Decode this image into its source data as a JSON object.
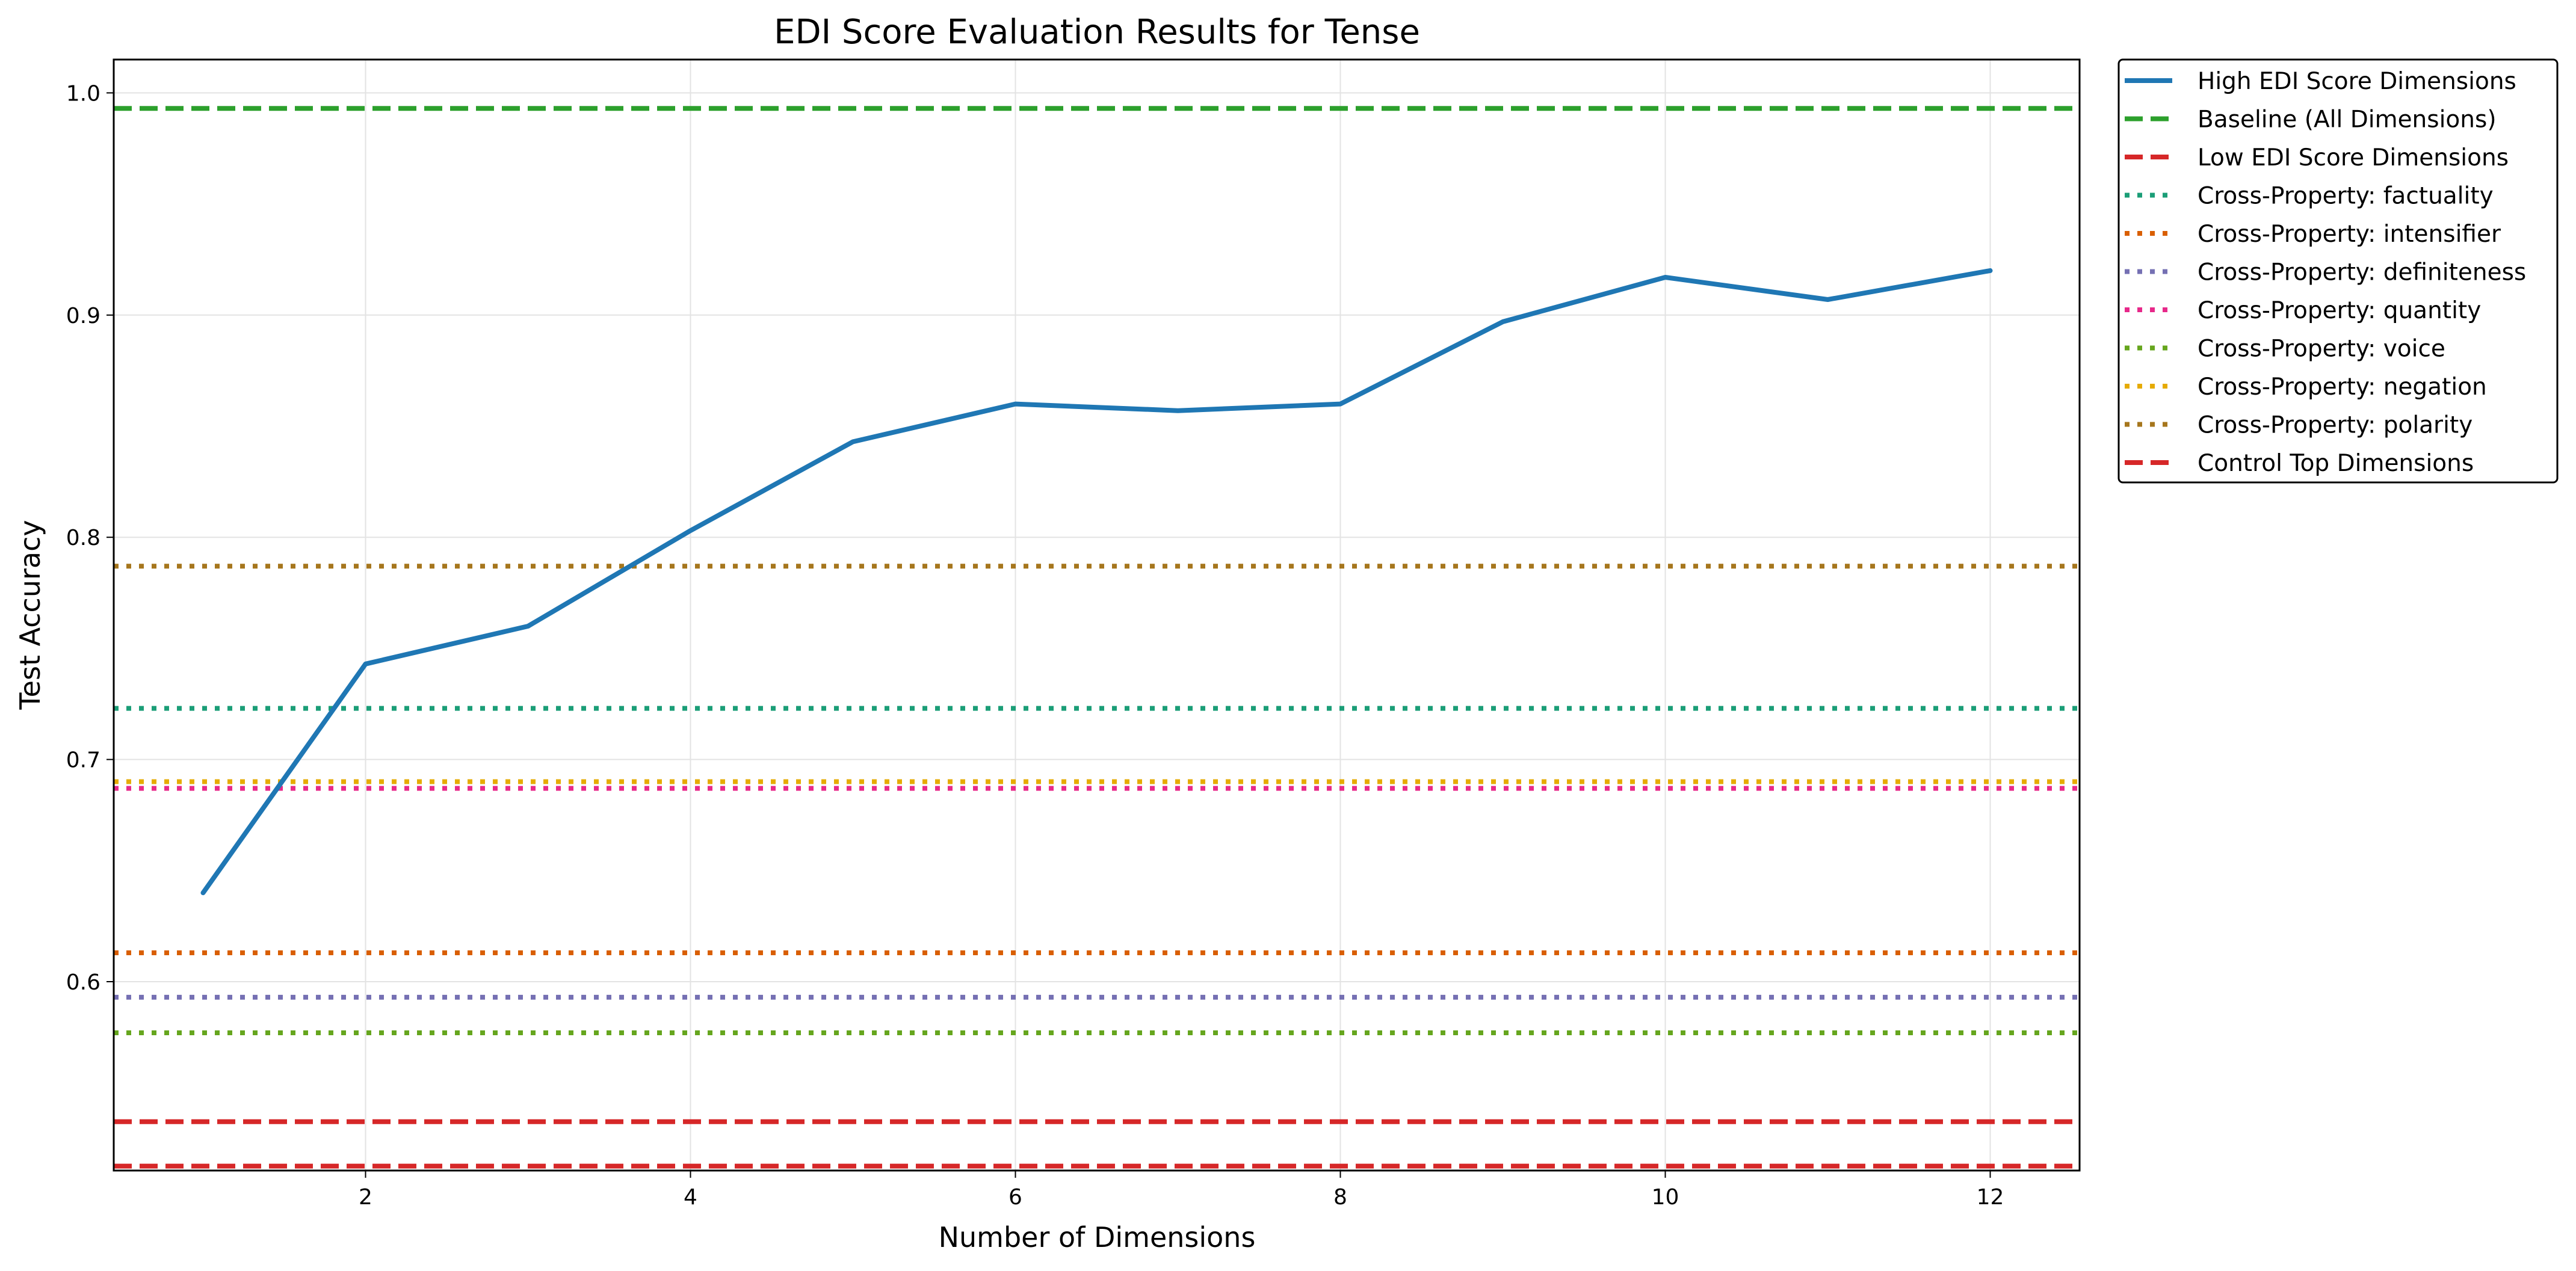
{
  "chart_data": {
    "type": "line",
    "title": "EDI Score Evaluation Results for Tense",
    "xlabel": "Number of Dimensions",
    "ylabel": "Test Accuracy",
    "xlim": [
      0.45,
      12.55
    ],
    "ylim": [
      0.515,
      1.015
    ],
    "xticks": [
      2,
      4,
      6,
      8,
      10,
      12
    ],
    "yticks": [
      0.6,
      0.7,
      0.8,
      0.9,
      1.0
    ],
    "ytick_labels": [
      "0.6",
      "0.7",
      "0.8",
      "0.9",
      "1.0"
    ],
    "grid": true,
    "legend_position": "outside-top-right",
    "series": [
      {
        "name": "High EDI Score Dimensions",
        "kind": "line",
        "style": "solid",
        "color": "#1f77b4",
        "x": [
          1,
          2,
          3,
          4,
          5,
          6,
          7,
          8,
          9,
          10,
          11,
          12
        ],
        "y": [
          0.64,
          0.743,
          0.76,
          0.803,
          0.843,
          0.86,
          0.857,
          0.86,
          0.897,
          0.917,
          0.907,
          0.92
        ]
      },
      {
        "name": "Baseline (All Dimensions)",
        "kind": "hline",
        "style": "dashed",
        "color": "#2ca02c",
        "y": 0.993
      },
      {
        "name": "Low EDI Score Dimensions",
        "kind": "hline",
        "style": "dashed",
        "color": "#d62728",
        "y": 0.537
      },
      {
        "name": "Cross-Property: factuality",
        "kind": "hline",
        "style": "dotted",
        "color": "#1b9e77",
        "y": 0.723
      },
      {
        "name": "Cross-Property: intensifier",
        "kind": "hline",
        "style": "dotted",
        "color": "#d95f02",
        "y": 0.613
      },
      {
        "name": "Cross-Property: definiteness",
        "kind": "hline",
        "style": "dotted",
        "color": "#7570b3",
        "y": 0.593
      },
      {
        "name": "Cross-Property: quantity",
        "kind": "hline",
        "style": "dotted",
        "color": "#e7298a",
        "y": 0.687
      },
      {
        "name": "Cross-Property: voice",
        "kind": "hline",
        "style": "dotted",
        "color": "#66a61e",
        "y": 0.577
      },
      {
        "name": "Cross-Property: negation",
        "kind": "hline",
        "style": "dotted",
        "color": "#e6ab02",
        "y": 0.69
      },
      {
        "name": "Cross-Property: polarity",
        "kind": "hline",
        "style": "dotted",
        "color": "#a6761d",
        "y": 0.787
      },
      {
        "name": "Control Top Dimensions",
        "kind": "hline",
        "style": "dashed",
        "color": "#d62728",
        "y": 0.517
      }
    ]
  }
}
